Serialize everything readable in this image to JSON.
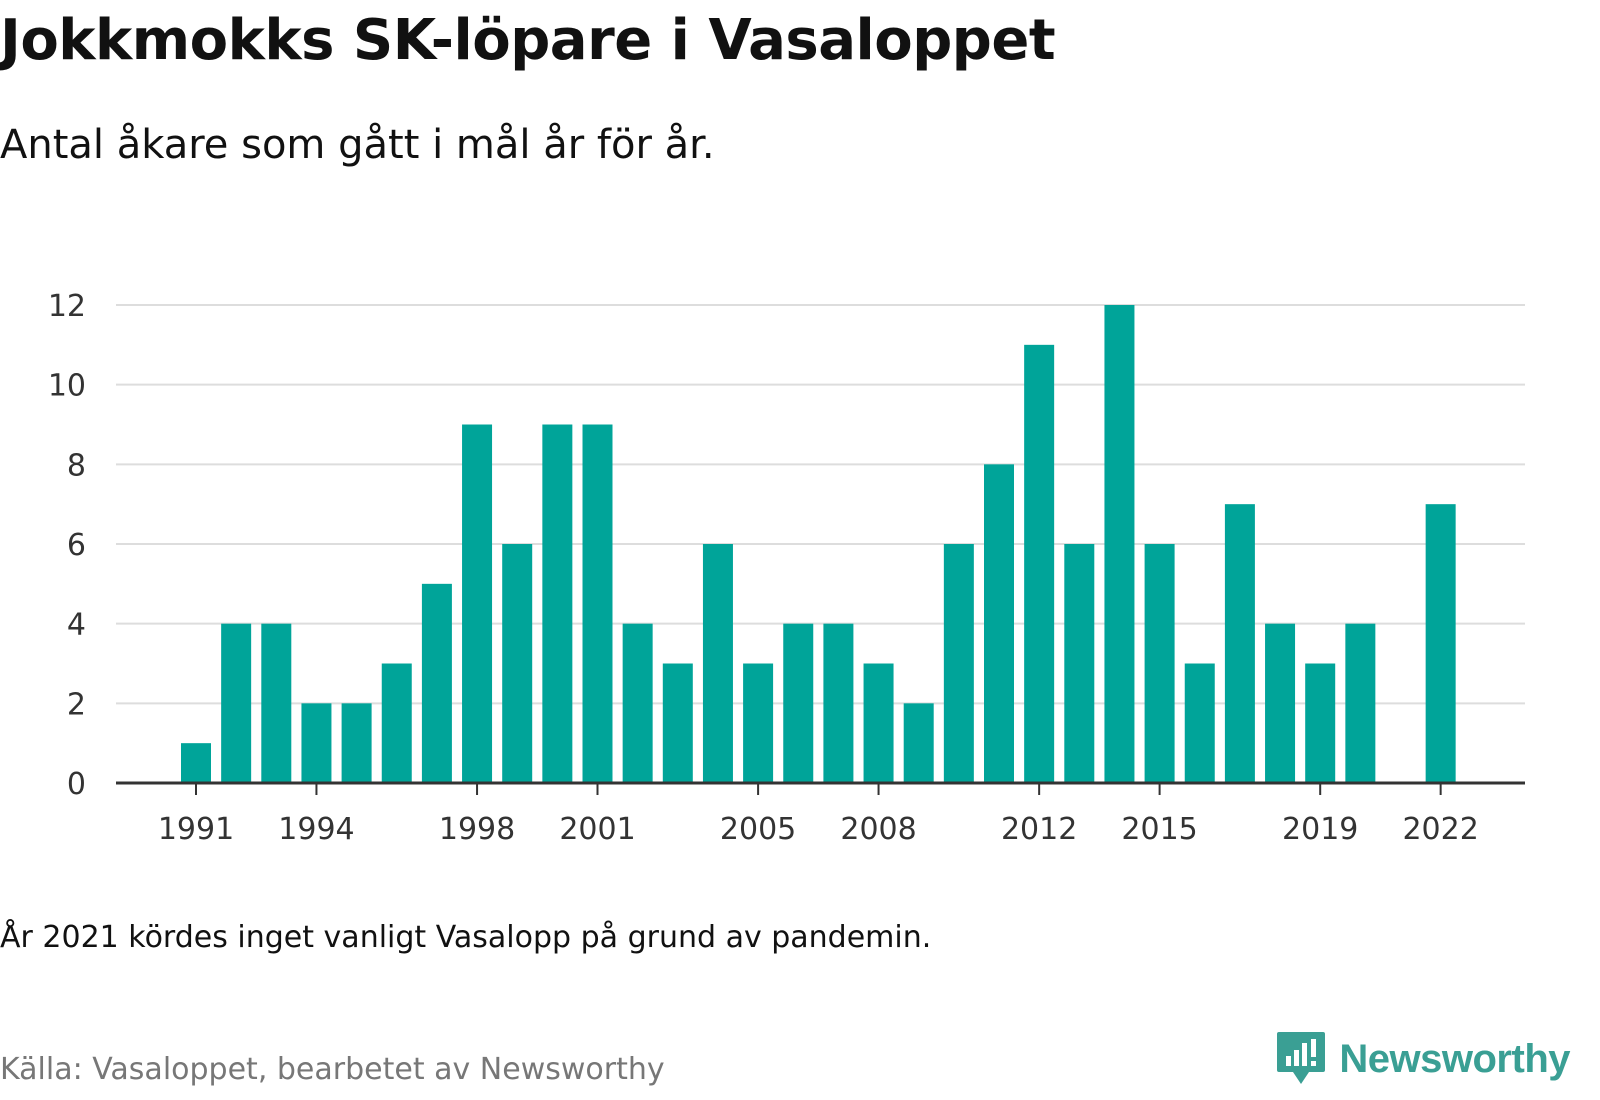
{
  "title": "Jokkmokks SK-löpare i Vasaloppet",
  "subtitle": "Antal åkare som gått i mål år för år.",
  "note": "År 2021 kördes inget vanligt Vasalopp på grund av pandemin.",
  "source": "Källa: Vasaloppet, bearbetet av Newsworthy",
  "brand": {
    "name": "Newsworthy",
    "icon": "newsworthy-logo-icon",
    "color": "#3a9f94"
  },
  "chart_data": {
    "type": "bar",
    "x": [
      1991,
      1992,
      1993,
      1994,
      1995,
      1996,
      1997,
      1998,
      1999,
      2000,
      2001,
      2002,
      2003,
      2004,
      2005,
      2006,
      2007,
      2008,
      2009,
      2010,
      2011,
      2012,
      2013,
      2014,
      2015,
      2016,
      2017,
      2018,
      2019,
      2020,
      2021,
      2022
    ],
    "values": [
      1,
      4,
      4,
      2,
      2,
      3,
      5,
      9,
      6,
      9,
      9,
      4,
      3,
      6,
      3,
      4,
      4,
      3,
      2,
      6,
      8,
      11,
      6,
      12,
      6,
      3,
      7,
      4,
      3,
      4,
      null,
      7
    ],
    "x_tick_labels": [
      "1991",
      "1994",
      "1998",
      "2001",
      "2005",
      "2008",
      "2012",
      "2015",
      "2019",
      "2022"
    ],
    "y_tick_labels": [
      "0",
      "2",
      "4",
      "6",
      "8",
      "10",
      "12"
    ],
    "ylim": [
      0,
      12
    ],
    "xlabel": "",
    "ylabel": "",
    "grid": true,
    "bar_color": "#00a499"
  }
}
